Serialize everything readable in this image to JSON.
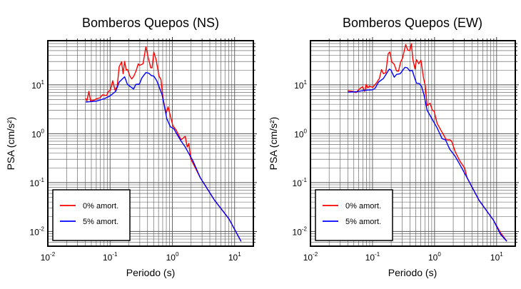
{
  "colors": {
    "undamped": "#ff0000",
    "damped": "#0000ff",
    "grid": "#000000",
    "frame": "#000000"
  },
  "chart_data": [
    {
      "type": "line",
      "title": "Bomberos Quepos (NS)",
      "xlabel": "Periodo (s)",
      "ylabel": "PSA (cm/s²)",
      "xscale": "log",
      "yscale": "log",
      "xlim": [
        0.01,
        20
      ],
      "ylim": [
        0.005,
        80
      ],
      "grid": true,
      "legend_position": "bottom-left",
      "x_ticks": [
        {
          "value": 0.01,
          "base": "10",
          "exp": "-2"
        },
        {
          "value": 0.1,
          "base": "10",
          "exp": "-1"
        },
        {
          "value": 1,
          "base": "10",
          "exp": "0"
        },
        {
          "value": 10,
          "base": "10",
          "exp": "1"
        }
      ],
      "y_ticks": [
        {
          "value": 0.01,
          "base": "10",
          "exp": "-2"
        },
        {
          "value": 0.1,
          "base": "10",
          "exp": "-1"
        },
        {
          "value": 1,
          "base": "10",
          "exp": "0"
        },
        {
          "value": 10,
          "base": "10",
          "exp": "1"
        }
      ],
      "series": [
        {
          "name": "0% amort.",
          "color": "#ff0000",
          "x": [
            0.0407,
            0.0425,
            0.0456,
            0.0486,
            0.0554,
            0.0605,
            0.069,
            0.0754,
            0.0883,
            0.0941,
            0.101,
            0.11,
            0.12,
            0.13,
            0.14,
            0.153,
            0.162,
            0.171,
            0.182,
            0.19,
            0.208,
            0.223,
            0.241,
            0.264,
            0.283,
            0.296,
            0.338,
            0.376,
            0.41,
            0.449,
            0.473,
            0.503,
            0.548,
            0.61,
            0.655,
            0.714,
            0.794,
            0.853,
            1.02,
            1.16,
            1.38,
            1.61,
            1.73,
            1.84,
            1.97,
            2.81,
            4.77,
            8.09,
            12.7
          ],
          "y": [
            5.25,
            4.69,
            7.33,
            4.69,
            4.85,
            5.18,
            5.43,
            6.21,
            6.06,
            7.33,
            7.73,
            12.1,
            7.73,
            9.14,
            23.6,
            29.4,
            16.9,
            30.1,
            19.9,
            20.6,
            15.1,
            13.2,
            15.1,
            19.9,
            26.9,
            24.9,
            26.9,
            60,
            35.9,
            22.3,
            22.3,
            46.9,
            32.9,
            15.1,
            12.8,
            4.96,
            2.55,
            3.55,
            1.46,
            1.17,
            0.748,
            0.884,
            0.536,
            0.633,
            0.308,
            0.126,
            0.0434,
            0.0182,
            0.00627
          ]
        },
        {
          "name": "5% amort.",
          "color": "#0000ff",
          "x": [
            0.0407,
            0.0605,
            0.0824,
            0.0982,
            0.123,
            0.14,
            0.171,
            0.19,
            0.238,
            0.259,
            0.296,
            0.323,
            0.376,
            0.421,
            0.461,
            0.503,
            0.563,
            0.685,
            0.815,
            0.931,
            1.05,
            1.21,
            1.38,
            1.61,
            1.84,
            2.15,
            2.81,
            4.77,
            8.09,
            12.7
          ],
          "y": [
            4.44,
            4.64,
            5.25,
            5.86,
            7.33,
            11.4,
            14.6,
            10.2,
            8.19,
            10.2,
            10.4,
            13.8,
            17.8,
            17.2,
            15.4,
            15.1,
            12.1,
            6.21,
            2.04,
            1.38,
            1.28,
            0.935,
            0.709,
            0.536,
            0.393,
            0.275,
            0.126,
            0.0434,
            0.0182,
            0.00627
          ]
        }
      ]
    },
    {
      "type": "line",
      "title": "Bomberos Quepos (EW)",
      "xlabel": "Periodo (s)",
      "ylabel": "PSA (cm/s²)",
      "xscale": "log",
      "yscale": "log",
      "xlim": [
        0.01,
        20
      ],
      "ylim": [
        0.005,
        80
      ],
      "grid": true,
      "legend_position": "bottom-left",
      "x_ticks": [
        {
          "value": 0.01,
          "base": "10",
          "exp": "-2"
        },
        {
          "value": 0.1,
          "base": "10",
          "exp": "-1"
        },
        {
          "value": 1,
          "base": "10",
          "exp": "0"
        },
        {
          "value": 10,
          "base": "10",
          "exp": "1"
        }
      ],
      "y_ticks": [
        {
          "value": 0.01,
          "base": "10",
          "exp": "-2"
        },
        {
          "value": 0.1,
          "base": "10",
          "exp": "-1"
        },
        {
          "value": 1,
          "base": "10",
          "exp": "0"
        },
        {
          "value": 10,
          "base": "10",
          "exp": "1"
        }
      ],
      "series": [
        {
          "name": "0% amort.",
          "color": "#ff0000",
          "x": [
            0.0396,
            0.0472,
            0.054,
            0.0616,
            0.0692,
            0.075,
            0.0791,
            0.0841,
            0.0894,
            0.1005,
            0.115,
            0.129,
            0.14,
            0.15,
            0.164,
            0.179,
            0.19,
            0.204,
            0.224,
            0.244,
            0.262,
            0.284,
            0.304,
            0.342,
            0.37,
            0.397,
            0.423,
            0.447,
            0.484,
            0.51,
            0.557,
            0.603,
            0.665,
            0.708,
            0.76,
            0.845,
            0.923,
            0.982,
            1.1,
            1.26,
            1.44,
            1.54,
            1.76,
            1.88,
            2.15,
            2.56,
            3.06,
            3.34,
            5.21,
            8.87,
            11.6,
            14.6
          ],
          "y": [
            7.58,
            7.41,
            6.93,
            8.19,
            9.14,
            7.33,
            10.2,
            8.66,
            9.44,
            8.84,
            10.8,
            13.5,
            20.4,
            16.9,
            17.8,
            43.4,
            46.9,
            29.4,
            26.3,
            19.3,
            18.9,
            29.4,
            34.7,
            66.3,
            51.3,
            50.1,
            69.3,
            32.9,
            21.0,
            32.9,
            26.9,
            31.8,
            13.5,
            9.68,
            3.76,
            4.2,
            3.01,
            2.91,
            1.63,
            1.19,
            0.884,
            0.748,
            0.748,
            0.709,
            0.43,
            0.275,
            0.197,
            0.126,
            0.0434,
            0.0171,
            0.0094,
            0.0063
          ]
        },
        {
          "name": "5% amort.",
          "color": "#0000ff",
          "x": [
            0.0396,
            0.0564,
            0.0736,
            0.1005,
            0.11,
            0.125,
            0.15,
            0.187,
            0.199,
            0.224,
            0.244,
            0.279,
            0.333,
            0.364,
            0.397,
            0.435,
            0.51,
            0.567,
            0.619,
            0.676,
            0.76,
            0.883,
            1.1,
            1.32,
            1.5,
            1.76,
            2.15,
            2.56,
            3.34,
            5.21,
            8.87,
            11.6,
            14.6
          ],
          "y": [
            7.09,
            7.23,
            7.73,
            7.92,
            8.47,
            11.4,
            13.5,
            21.0,
            19.9,
            14.3,
            16.3,
            16.9,
            22.8,
            22.3,
            19.3,
            19.9,
            10.8,
            10.6,
            9.14,
            6.21,
            3.01,
            2.15,
            1.31,
            0.792,
            0.748,
            0.48,
            0.344,
            0.233,
            0.126,
            0.0434,
            0.0171,
            0.0087,
            0.0063
          ]
        }
      ]
    }
  ]
}
